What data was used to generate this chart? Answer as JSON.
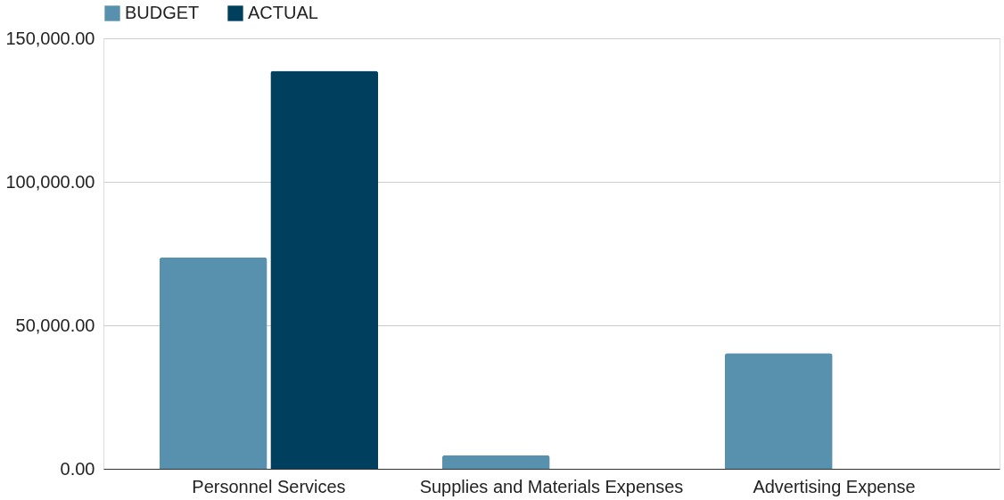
{
  "chart_data": {
    "type": "bar",
    "categories": [
      "Personnel Services",
      "Supplies and Materials Expenses",
      "Advertising Expense"
    ],
    "series": [
      {
        "name": "BUDGET",
        "color": "#5891ad",
        "values": [
          73700,
          4700,
          40300
        ]
      },
      {
        "name": "ACTUAL",
        "color": "#00405e",
        "values": [
          138700,
          null,
          null
        ]
      }
    ],
    "ylim": [
      0,
      150000
    ],
    "yticks": [
      {
        "value": 0,
        "label": "0.00"
      },
      {
        "value": 50000,
        "label": "50,000.00"
      },
      {
        "value": 100000,
        "label": "100,000.00"
      },
      {
        "value": 150000,
        "label": "150,000.00"
      }
    ],
    "grid": "y",
    "legend": "top"
  }
}
